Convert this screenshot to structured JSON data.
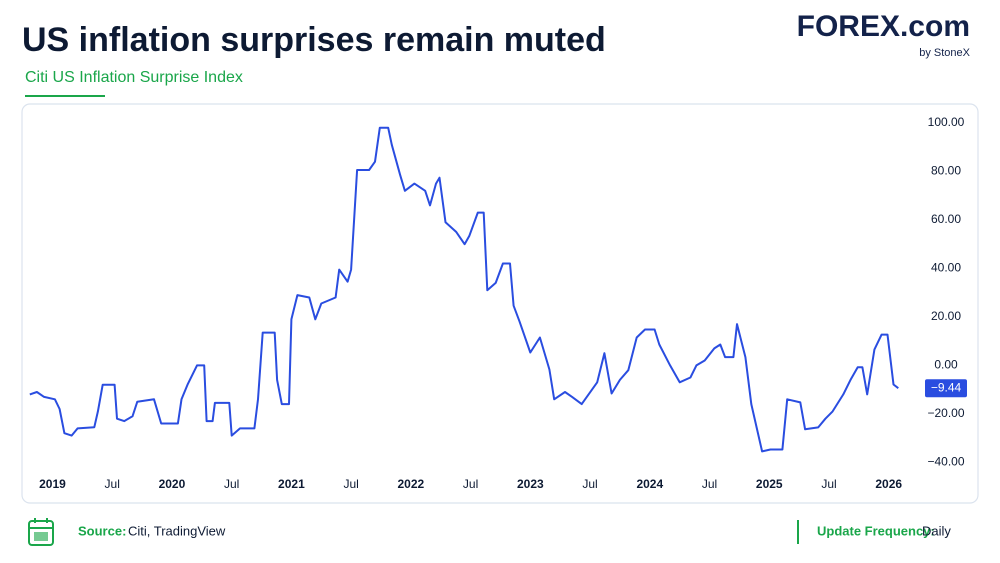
{
  "header": {
    "title": "US inflation surprises remain muted",
    "brand": "FOREX.com",
    "brand_sub": "by StoneX"
  },
  "chart_data": {
    "type": "line",
    "title": "Citi US Inflation Surprise Index",
    "x": [
      2018.81,
      2018.87,
      2018.93,
      2019.02,
      2019.06,
      2019.1,
      2019.16,
      2019.21,
      2019.35,
      2019.38,
      2019.42,
      2019.52,
      2019.54,
      2019.6,
      2019.67,
      2019.71,
      2019.85,
      2019.91,
      2020.05,
      2020.08,
      2020.13,
      2020.21,
      2020.27,
      2020.29,
      2020.34,
      2020.36,
      2020.48,
      2020.5,
      2020.57,
      2020.69,
      2020.72,
      2020.76,
      2020.86,
      2020.88,
      2020.92,
      2020.98,
      2021.0,
      2021.05,
      2021.15,
      2021.2,
      2021.25,
      2021.37,
      2021.4,
      2021.47,
      2021.5,
      2021.55,
      2021.65,
      2021.7,
      2021.74,
      2021.81,
      2021.84,
      2021.91,
      2021.95,
      2022.03,
      2022.12,
      2022.16,
      2022.21,
      2022.24,
      2022.29,
      2022.38,
      2022.45,
      2022.49,
      2022.56,
      2022.61,
      2022.64,
      2022.71,
      2022.77,
      2022.83,
      2022.86,
      2022.91,
      2023.0,
      2023.08,
      2023.16,
      2023.2,
      2023.29,
      2023.35,
      2023.43,
      2023.56,
      2023.62,
      2023.68,
      2023.75,
      2023.82,
      2023.89,
      2023.96,
      2024.04,
      2024.08,
      2024.17,
      2024.25,
      2024.34,
      2024.39,
      2024.46,
      2024.54,
      2024.59,
      2024.63,
      2024.7,
      2024.73,
      2024.8,
      2024.85,
      2024.94,
      2025.01,
      2025.11,
      2025.15,
      2025.26,
      2025.3,
      2025.41,
      2025.47,
      2025.53,
      2025.62,
      2025.68,
      2025.74,
      2025.78,
      2025.82,
      2025.88,
      2025.94,
      2025.99,
      2026.04,
      2026.08
    ],
    "series": [
      {
        "name": "Citi US Inflation Surprise Index",
        "color": "#2a4de0",
        "values": [
          -12,
          -11,
          -13,
          -14,
          -18,
          -28,
          -29,
          -26,
          -25.5,
          -19,
          -8,
          -8,
          -22,
          -23,
          -21,
          -15,
          -14,
          -24,
          -24,
          -14,
          -8,
          0,
          0,
          -23,
          -23,
          -15.5,
          -15.5,
          -29,
          -26,
          -26,
          -14,
          13.5,
          13.5,
          -6,
          -16,
          -16,
          19,
          29,
          28,
          19,
          25.5,
          28,
          39.5,
          34.5,
          39.5,
          80.6,
          80.6,
          84,
          98,
          98,
          91,
          78.6,
          72,
          75,
          72,
          66,
          75,
          77.4,
          59,
          55,
          50,
          53.5,
          63,
          63,
          31,
          34,
          42,
          42,
          24.6,
          18,
          5.3,
          11.5,
          -1.7,
          -14,
          -11,
          -13,
          -16,
          -7,
          5,
          -11.6,
          -6,
          -2,
          11.5,
          14.8,
          14.8,
          8.6,
          0,
          -7,
          -5,
          0,
          2,
          7,
          8.6,
          3.4,
          3.4,
          17,
          3.4,
          -16,
          -35.5,
          -34.7,
          -34.7,
          -14,
          -15.3,
          -26.4,
          -25.6,
          -22,
          -19,
          -12,
          -6,
          -0.8,
          -0.8,
          -12,
          6.5,
          12.7,
          12.7,
          -7.9,
          -9.44
        ]
      }
    ],
    "last_label": "−9.44",
    "xlim": [
      2018.77,
      2026.22
    ],
    "xticks": [
      2019,
      {
        "value": 2019.5,
        "label": "Jul"
      },
      2020,
      {
        "value": 2020.5,
        "label": "Jul"
      },
      2021,
      {
        "value": 2021.5,
        "label": "Jul"
      },
      2022,
      {
        "value": 2022.5,
        "label": "Jul"
      },
      2023,
      {
        "value": 2023.5,
        "label": "Jul"
      },
      2024,
      {
        "value": 2024.5,
        "label": "Jul"
      },
      2025,
      {
        "value": 2025.5,
        "label": "Jul"
      },
      2026
    ],
    "ylim": [
      -44,
      107
    ],
    "yticks": [
      {
        "value": 100,
        "label": "100.00"
      },
      {
        "value": 80,
        "label": "80.00"
      },
      {
        "value": 60,
        "label": "60.00"
      },
      {
        "value": 40,
        "label": "40.00"
      },
      {
        "value": 20,
        "label": "20.00"
      },
      {
        "value": 0,
        "label": "0.00"
      },
      {
        "value": -20,
        "label": "−20.00"
      },
      {
        "value": -40,
        "label": "−40.00"
      }
    ],
    "grid": false
  },
  "footer": {
    "source_label": "Source:",
    "source": "Citi, TradingView",
    "frequency_label": "Update Frequency:",
    "frequency": "Daily"
  }
}
